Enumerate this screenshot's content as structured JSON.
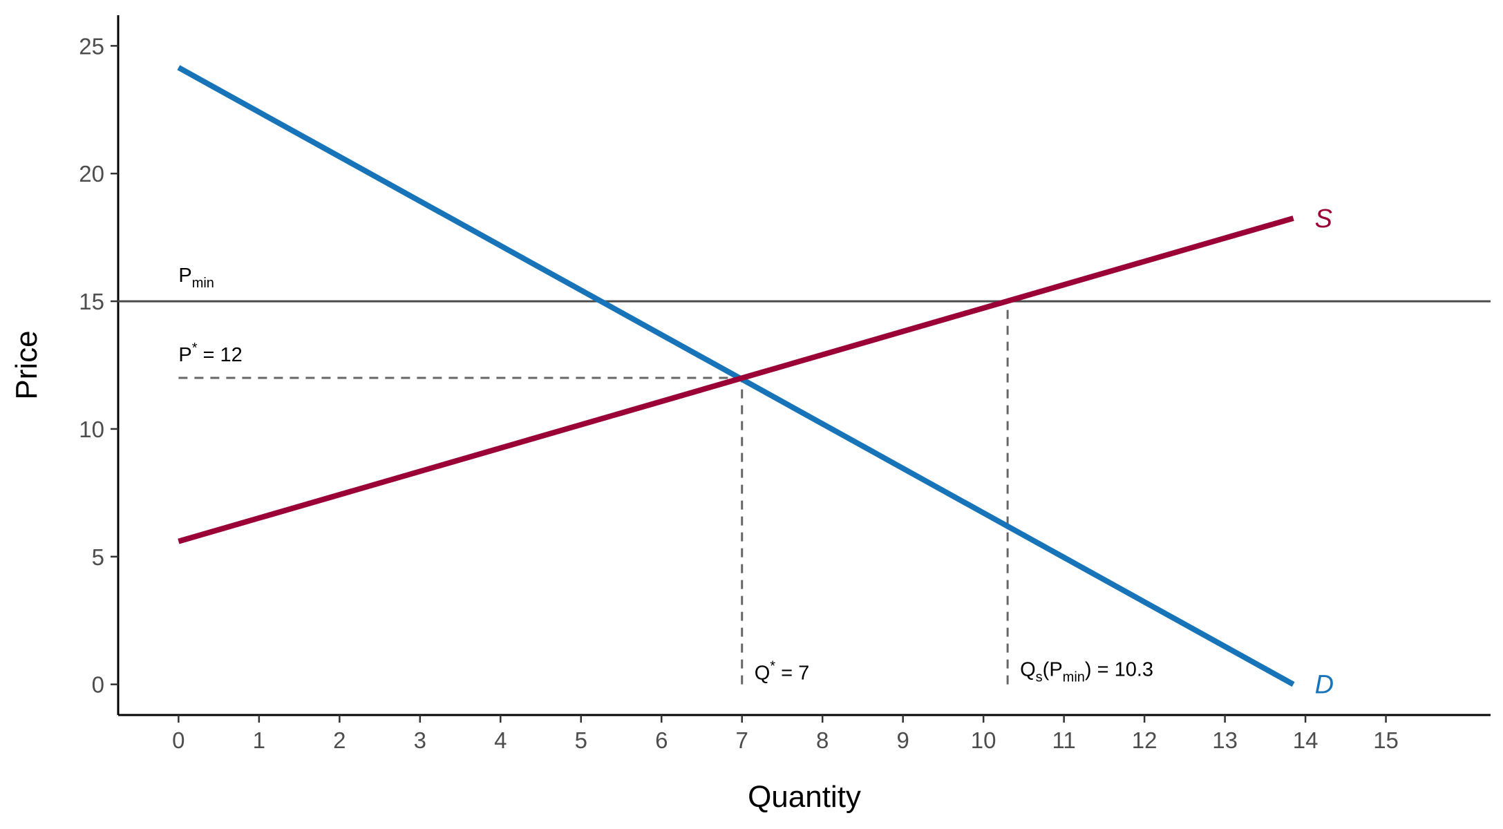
{
  "chart_data": {
    "type": "line",
    "xlabel": "Quantity",
    "ylabel": "Price",
    "xlim": [
      -0.75,
      16.3
    ],
    "ylim": [
      -1.2,
      26.2
    ],
    "x_ticks": [
      "0",
      "1",
      "2",
      "3",
      "4",
      "5",
      "6",
      "7",
      "8",
      "9",
      "10",
      "11",
      "12",
      "13",
      "14",
      "15"
    ],
    "y_ticks": [
      "0",
      "5",
      "10",
      "15",
      "20",
      "25"
    ],
    "grid": false,
    "series": [
      {
        "name": "D",
        "color": "#1874b8",
        "x": [
          0,
          13.85
        ],
        "y": [
          24.15,
          0
        ]
      },
      {
        "name": "S",
        "color": "#9a0036",
        "x": [
          0,
          13.85
        ],
        "y": [
          5.6,
          18.25
        ]
      }
    ],
    "price_floor": {
      "y": 15,
      "color": "#4a4a4a"
    },
    "guides": [
      {
        "type": "horizontal",
        "y": 12,
        "x_from": 0,
        "x_to": 7
      },
      {
        "type": "vertical",
        "x": 7,
        "y_from": 0,
        "y_to": 12
      },
      {
        "type": "vertical",
        "x": 10.3,
        "y_from": 0,
        "y_to": 15
      }
    ],
    "annotations": {
      "pmin": {
        "main": "P",
        "sub": "min"
      },
      "p_star": {
        "main": "P",
        "sup": "*",
        "rest": " = 12"
      },
      "q_star": {
        "main": "Q",
        "sup": "*",
        "rest": " = 7"
      },
      "qs_pmin": {
        "main": "Q",
        "sub1": "s",
        "mid": "(P",
        "sub2": "min",
        "rest": ") = 10.3"
      }
    }
  }
}
